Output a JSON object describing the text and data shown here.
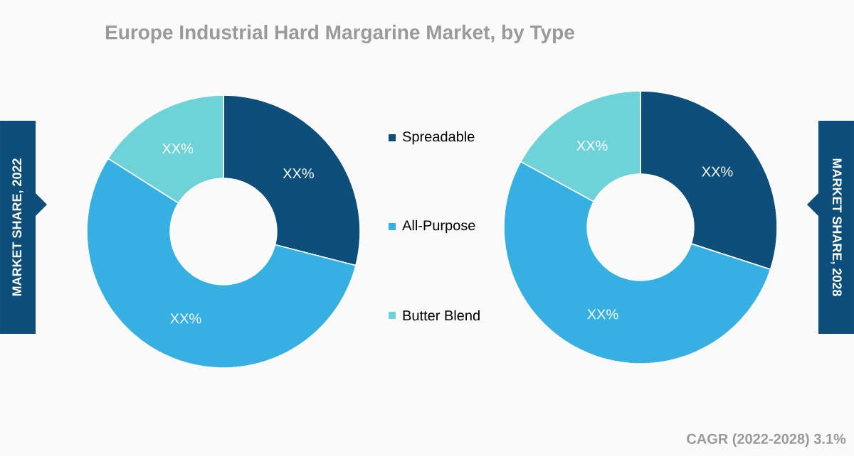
{
  "chart_data": [
    {
      "type": "donut",
      "title": "Europe Industrial Hard Margarine Market, by Type",
      "ylabel": "MARKET SHARE, 2022",
      "categories": [
        "Spreadable",
        "All-Purpose",
        "Butter Blend"
      ],
      "values": [
        29,
        55,
        16
      ],
      "value_labels": [
        "XX%",
        "XX%",
        "XX%"
      ],
      "colors": [
        "#0d4f7a",
        "#36b0e3",
        "#6dd3d8"
      ],
      "legend": "right"
    },
    {
      "type": "donut",
      "y2label": "MARKET SHARE, 2028",
      "annotations": [
        "CAGR (2022-2028) 3.1%"
      ],
      "categories": [
        null,
        null,
        null
      ],
      "values": [
        30,
        53,
        17
      ],
      "value_labels": [
        "XX%",
        "XX%",
        "XX%"
      ],
      "colors": [
        "#0d4f7a",
        "#36b0e3",
        "#6dd3d8"
      ]
    }
  ]
}
